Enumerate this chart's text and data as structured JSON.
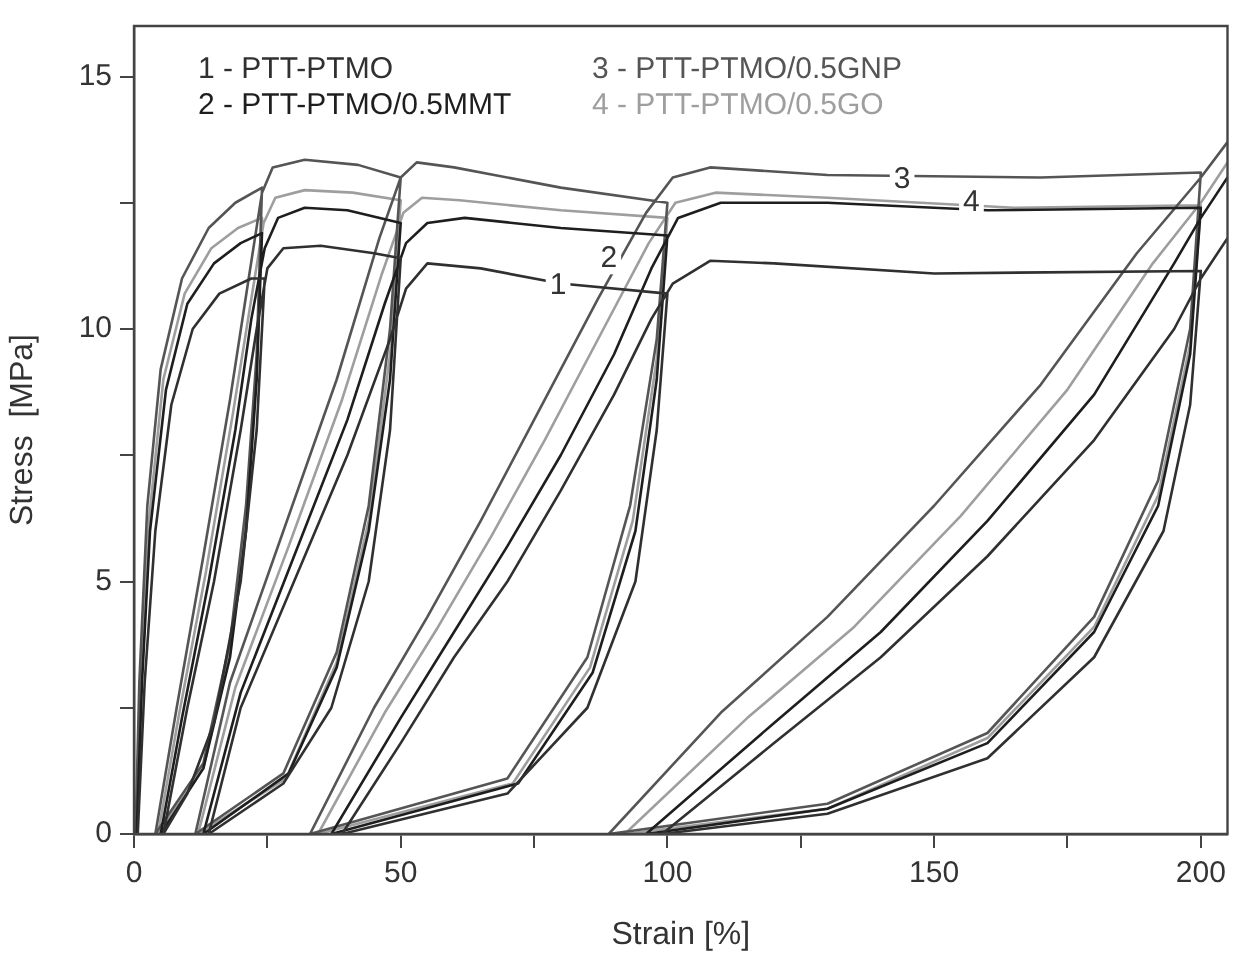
{
  "chart_data": {
    "type": "line",
    "xlabel": "Strain [%]",
    "ylabel": "Stress  [MPa]",
    "xlim": [
      0,
      205
    ],
    "ylim": [
      0,
      16
    ],
    "xticks": [
      0,
      {
        "value": 25,
        "label": null
      },
      50,
      {
        "value": 75,
        "label": null
      },
      100,
      {
        "value": 125,
        "label": null
      },
      150,
      {
        "value": 175,
        "label": null
      },
      200
    ],
    "yticks": [
      0,
      {
        "value": 2.5,
        "label": null
      },
      5,
      {
        "value": 7.5,
        "label": null
      },
      10,
      {
        "value": 12.5,
        "label": null
      },
      15
    ],
    "grid": false,
    "legend": "top left",
    "marker": "none",
    "line_style": "solid",
    "annotations": [
      {
        "text": "1",
        "x": 79.5,
        "y": 10.86
      },
      {
        "text": "2",
        "x": 89,
        "y": 11.4
      },
      {
        "text": "3",
        "x": 144,
        "y": 12.95
      },
      {
        "text": "4",
        "x": 157,
        "y": 12.5
      }
    ],
    "series": [
      {
        "name": "1 - PTT-PTMO",
        "color": "#303030",
        "x": [
          0.7,
          2,
          4,
          7,
          11,
          16,
          22,
          24.5,
          23,
          20,
          15,
          10,
          5.5,
          10,
          15,
          20,
          23,
          25,
          28,
          35,
          45,
          50,
          48,
          44,
          37,
          28,
          14,
          20,
          30,
          40,
          48,
          51,
          55,
          65,
          80,
          100,
          98,
          94,
          85,
          70,
          39,
          50,
          60,
          70,
          80,
          90,
          97,
          101,
          108,
          120,
          150,
          200,
          198,
          193,
          180,
          160,
          130,
          99,
          120,
          140,
          160,
          180,
          195,
          200,
          205
        ],
        "values": [
          0,
          3,
          6,
          8.5,
          10,
          10.7,
          11,
          11,
          8,
          5,
          2.2,
          0.8,
          0,
          2.5,
          5,
          8,
          10,
          11.2,
          11.6,
          11.65,
          11.5,
          11.4,
          8,
          5,
          2.5,
          1,
          0,
          2.5,
          5,
          7.5,
          9.8,
          10.8,
          11.3,
          11.2,
          10.9,
          10.7,
          8,
          5,
          2.5,
          0.8,
          0,
          1.8,
          3.5,
          5,
          6.8,
          8.7,
          10.2,
          10.9,
          11.35,
          11.3,
          11.1,
          11.15,
          8.5,
          6,
          3.5,
          1.5,
          0.4,
          0,
          1.8,
          3.5,
          5.5,
          7.8,
          10,
          11,
          11.8
        ]
      },
      {
        "name": "2 - PTT-PTMO/0.5MMT",
        "color": "#1e1e1e",
        "x": [
          0.5,
          1.5,
          3,
          6,
          10,
          15,
          20,
          24,
          23,
          21,
          18,
          13,
          5,
          9,
          14,
          19,
          22,
          24.5,
          27,
          32,
          40,
          50,
          48,
          44,
          38,
          29,
          13,
          20,
          30,
          40,
          47,
          51,
          55,
          62,
          80,
          100,
          98,
          94,
          86,
          72,
          37,
          50,
          60,
          70,
          80,
          90,
          97,
          102,
          110,
          130,
          160,
          200,
          198,
          192,
          180,
          160,
          130,
          96,
          120,
          140,
          160,
          180,
          195,
          200,
          205
        ],
        "values": [
          0,
          3,
          6,
          8.8,
          10.5,
          11.3,
          11.7,
          11.9,
          9,
          6,
          3.5,
          1.3,
          0,
          2.3,
          5,
          8,
          10.2,
          11.6,
          12.2,
          12.4,
          12.35,
          12.1,
          9,
          6,
          3.3,
          1.2,
          0,
          2.8,
          5.5,
          8.2,
          10.5,
          11.7,
          12.1,
          12.2,
          12,
          11.85,
          9,
          6,
          3.2,
          1,
          0,
          2.3,
          4,
          5.7,
          7.5,
          9.5,
          11.2,
          12.2,
          12.5,
          12.5,
          12.35,
          12.4,
          9.5,
          6.5,
          4,
          1.8,
          0.5,
          0,
          2.2,
          4,
          6.2,
          8.7,
          11.3,
          12.2,
          13
        ]
      },
      {
        "name": "3 - PTT-PTMO/0.5GNP",
        "color": "#555555",
        "x": [
          0.3,
          1,
          2.5,
          5,
          9,
          14,
          19,
          24,
          23,
          21,
          18,
          13,
          4,
          8,
          13,
          18,
          21.5,
          24,
          26,
          32,
          42,
          50,
          48,
          44,
          38,
          28,
          11.5,
          18,
          28,
          38,
          46,
          50,
          53,
          60,
          80,
          100,
          98,
          93,
          85,
          70,
          33,
          45,
          55,
          65,
          75,
          87,
          96,
          101,
          108,
          130,
          170,
          200,
          198,
          192,
          180,
          160,
          130,
          89,
          110,
          130,
          150,
          170,
          188,
          200,
          205
        ],
        "values": [
          0,
          3,
          6.5,
          9.2,
          11,
          12,
          12.5,
          12.8,
          9.5,
          6.5,
          3.8,
          1.4,
          0,
          2.5,
          5.5,
          8.6,
          11,
          12.7,
          13.2,
          13.35,
          13.25,
          13,
          10,
          6.5,
          3.6,
          1.2,
          0,
          3,
          6,
          9,
          11.8,
          13,
          13.3,
          13.2,
          12.8,
          12.5,
          9.8,
          6.5,
          3.5,
          1.1,
          0,
          2.5,
          4.3,
          6.2,
          8.2,
          10.6,
          12.3,
          13,
          13.2,
          13.05,
          13,
          13.1,
          10,
          7,
          4.3,
          2,
          0.6,
          0,
          2.4,
          4.3,
          6.5,
          8.9,
          11.5,
          13,
          13.7
        ]
      },
      {
        "name": "4 - PTT-PTMO/0.5GO",
        "color": "#9e9e9e",
        "x": [
          0.4,
          1.2,
          2.8,
          5.5,
          9.5,
          14.5,
          19.5,
          24,
          23,
          21,
          18,
          13,
          4.5,
          8.5,
          13.5,
          18.5,
          22,
          24.3,
          26.5,
          32,
          41,
          50,
          48,
          44,
          38,
          28.5,
          12,
          19,
          29,
          39,
          46.5,
          50.5,
          54,
          61,
          80,
          100,
          98,
          93.5,
          85.5,
          71,
          34.5,
          47,
          57,
          67,
          77,
          88,
          96.5,
          101.5,
          109,
          130,
          165,
          200,
          198,
          192,
          180,
          160,
          130,
          92,
          115,
          135,
          155,
          175,
          191,
          200,
          205
        ],
        "values": [
          0,
          3,
          6.2,
          9,
          10.7,
          11.6,
          12,
          12.2,
          9.2,
          6.2,
          3.6,
          1.3,
          0,
          2.4,
          5.2,
          8.3,
          10.6,
          12.1,
          12.6,
          12.75,
          12.7,
          12.55,
          9.5,
          6.2,
          3.4,
          1.1,
          0,
          2.9,
          5.7,
          8.6,
          11.1,
          12.3,
          12.6,
          12.55,
          12.35,
          12.2,
          9.4,
          6.2,
          3.3,
          1,
          0,
          2.4,
          4.1,
          5.9,
          7.8,
          10,
          11.7,
          12.5,
          12.7,
          12.6,
          12.4,
          12.45,
          9.7,
          6.7,
          4.1,
          1.9,
          0.5,
          0,
          2.3,
          4.1,
          6.3,
          8.8,
          11.3,
          12.5,
          13.3
        ]
      }
    ]
  }
}
